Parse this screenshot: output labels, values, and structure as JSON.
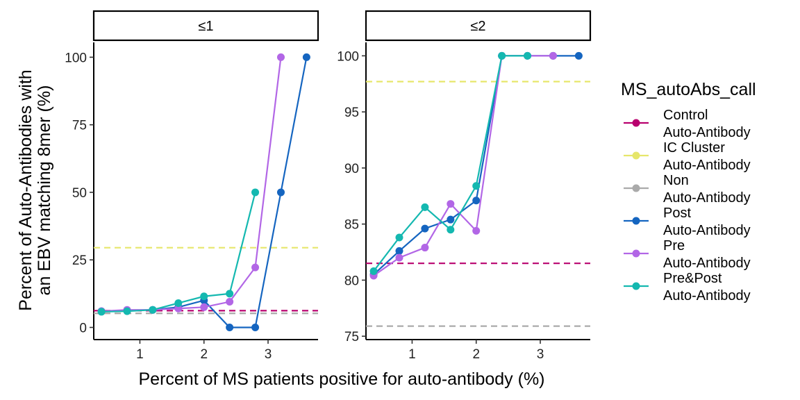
{
  "chart_data": {
    "type": "line",
    "xlabel": "Percent of MS patients positive for auto-antibody (%)",
    "ylabel_lines": [
      "Percent of Auto-Antibodies with",
      "an EBV matching 8mer (%)"
    ],
    "x_ticks": [
      1,
      2,
      3
    ],
    "legend": {
      "title": "MS_autoAbs_call",
      "placement": "right",
      "entries": [
        {
          "key": "control",
          "lines": [
            "Control",
            "Auto-Antibody"
          ],
          "color": "#B8006E",
          "style": "dashed-line-point"
        },
        {
          "key": "ic",
          "lines": [
            "IC Cluster",
            "Auto-Antibody"
          ],
          "color": "#E6E66A",
          "style": "dashed-line-point"
        },
        {
          "key": "non",
          "lines": [
            "Non",
            "Auto-Antibody"
          ],
          "color": "#AAAAAA",
          "style": "dashed-line-point"
        },
        {
          "key": "post",
          "lines": [
            "Post",
            "Auto-Antibody"
          ],
          "color": "#1565C0",
          "style": "line-point"
        },
        {
          "key": "pre",
          "lines": [
            "Pre",
            "Auto-Antibody"
          ],
          "color": "#B266E6",
          "style": "line-point"
        },
        {
          "key": "prepost",
          "lines": [
            "Pre&Post",
            "Auto-Antibody"
          ],
          "color": "#14B8B0",
          "style": "line-point"
        }
      ]
    },
    "panels": [
      {
        "strip_label": "≤1",
        "xlim": [
          0.28,
          3.78
        ],
        "ylim": [
          -4.5,
          105.5
        ],
        "y_ticks": [
          0,
          25,
          50,
          75,
          100
        ],
        "hlines": [
          {
            "key": "ic",
            "y": 29.5
          },
          {
            "key": "control",
            "y": 6.2
          },
          {
            "key": "non",
            "y": 5.2
          }
        ],
        "series": [
          {
            "key": "post",
            "x": [
              0.4,
              0.8,
              1.2,
              1.6,
              2.0,
              2.4,
              2.8,
              3.2,
              3.6
            ],
            "y": [
              6.0,
              6.3,
              6.5,
              7.5,
              10.0,
              0,
              0,
              50,
              100
            ]
          },
          {
            "key": "pre",
            "x": [
              0.4,
              0.8,
              1.2,
              1.6,
              2.0,
              2.4,
              2.8,
              3.2
            ],
            "y": [
              6.0,
              6.5,
              6.5,
              7.0,
              7.5,
              9.5,
              22.2,
              100
            ]
          },
          {
            "key": "prepost",
            "x": [
              0.4,
              0.8,
              1.2,
              1.6,
              2.0,
              2.4,
              2.8
            ],
            "y": [
              5.8,
              6.0,
              6.5,
              9.0,
              11.5,
              12.5,
              50
            ]
          }
        ]
      },
      {
        "strip_label": "≤2",
        "xlim": [
          0.28,
          3.78
        ],
        "ylim": [
          74.7,
          101.2
        ],
        "y_ticks": [
          75,
          80,
          85,
          90,
          95,
          100
        ],
        "hlines": [
          {
            "key": "ic",
            "y": 97.7
          },
          {
            "key": "control",
            "y": 81.5
          },
          {
            "key": "non",
            "y": 75.9
          }
        ],
        "series": [
          {
            "key": "post",
            "x": [
              0.4,
              0.8,
              1.2,
              1.6,
              2.0,
              2.4,
              2.8,
              3.2,
              3.6
            ],
            "y": [
              80.5,
              82.6,
              84.6,
              85.4,
              87.1,
              100,
              100,
              100,
              100
            ]
          },
          {
            "key": "pre",
            "x": [
              0.4,
              0.8,
              1.2,
              1.6,
              2.0,
              2.4,
              2.8,
              3.2
            ],
            "y": [
              80.4,
              82.0,
              82.9,
              86.8,
              84.4,
              100,
              100,
              100
            ]
          },
          {
            "key": "prepost",
            "x": [
              0.4,
              0.8,
              1.2,
              1.6,
              2.0,
              2.4,
              2.8
            ],
            "y": [
              80.8,
              83.8,
              86.5,
              84.5,
              88.4,
              100,
              100
            ]
          }
        ]
      }
    ]
  }
}
